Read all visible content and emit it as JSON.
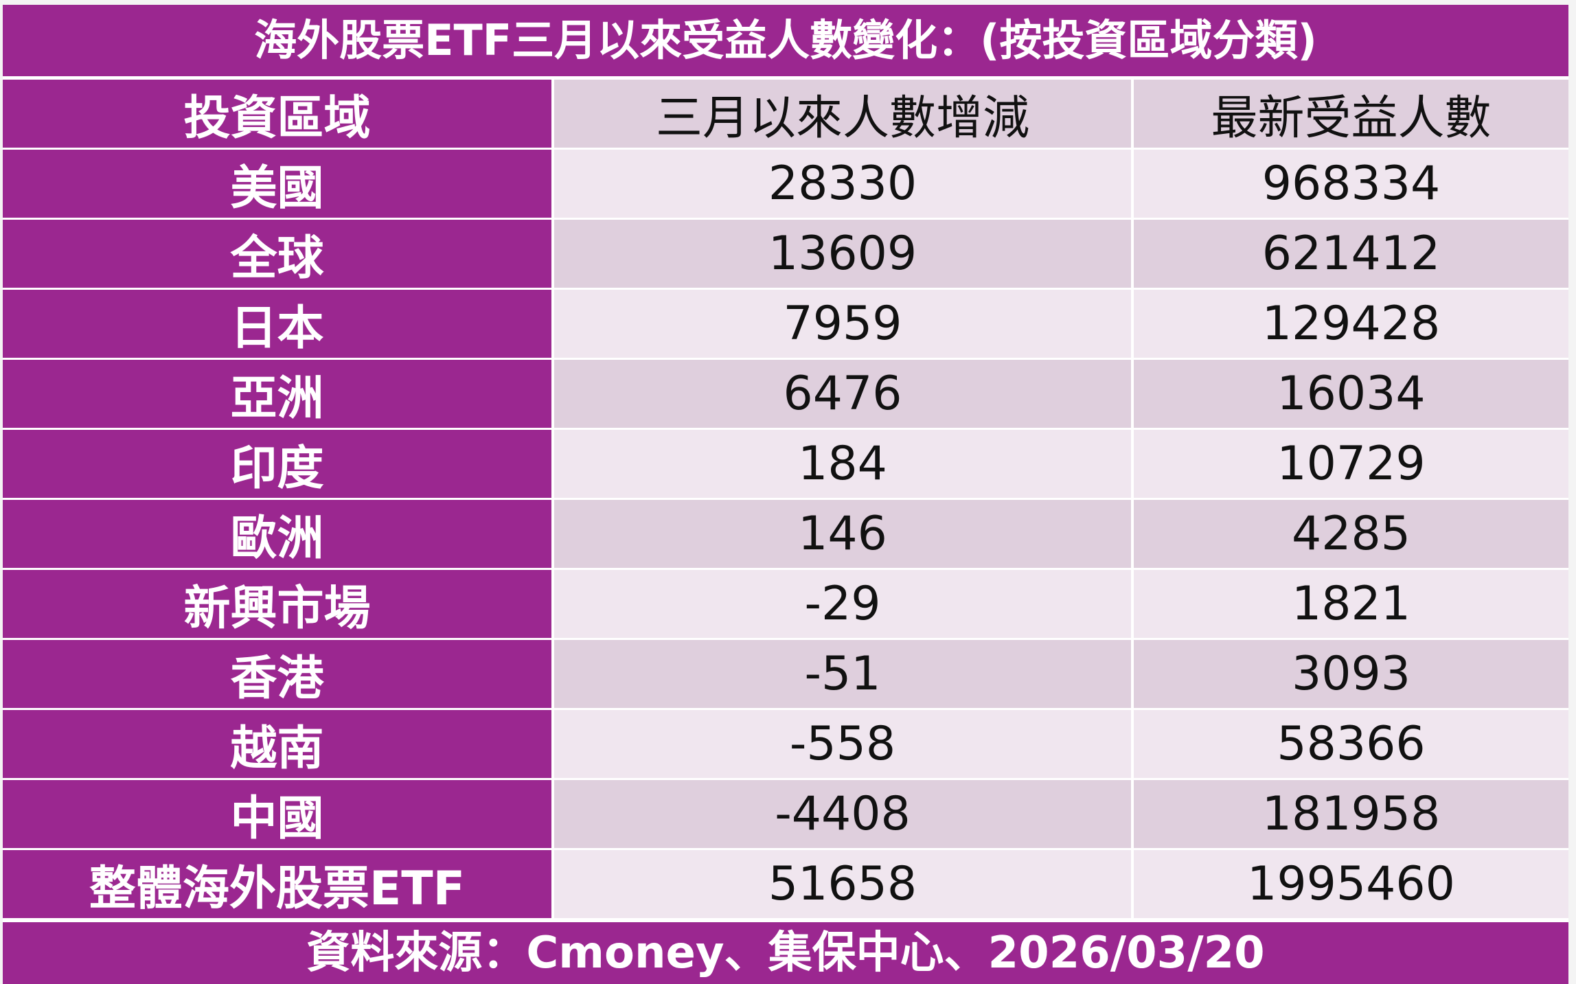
{
  "title": "海外股票ETF三月以來受益人數變化：(按投資區域分類)",
  "table": {
    "header": [
      "投資區域",
      "三月以來人數增減",
      "最新受益人數"
    ],
    "rows": [
      [
        "美國",
        28330,
        968334
      ],
      [
        "全球",
        13609,
        621412
      ],
      [
        "日本",
        7959,
        129428
      ],
      [
        "亞洲",
        6476,
        16034
      ],
      [
        "印度",
        184,
        10729
      ],
      [
        "歐洲",
        146,
        4285
      ],
      [
        "新興市場",
        -29,
        1821
      ],
      [
        "香港",
        -51,
        3093
      ],
      [
        "越南",
        -558,
        58366
      ],
      [
        "中國",
        -4408,
        181958
      ],
      [
        "整體海外股票ETF",
        51658,
        1995460
      ]
    ]
  },
  "source": "資料來源：Cmoney、集保中心、2026/03/20"
}
